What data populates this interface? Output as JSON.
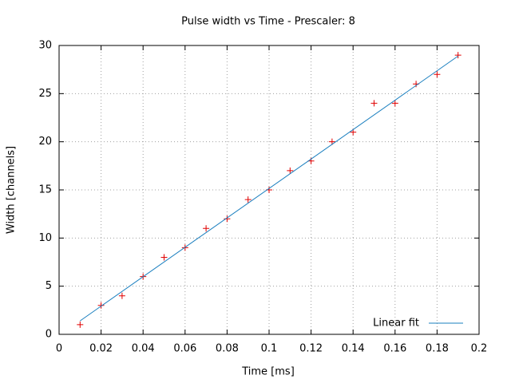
{
  "chart_data": {
    "type": "scatter",
    "title": "Pulse width vs Time - Prescaler: 8",
    "xlabel": "Time [ms]",
    "ylabel": "Width [channels]",
    "series": [
      {
        "type": "scatter",
        "color": "#e00000",
        "x": [
          0.01,
          0.02,
          0.03,
          0.04,
          0.05,
          0.06,
          0.07,
          0.08,
          0.09,
          0.1,
          0.11,
          0.12,
          0.13,
          0.14,
          0.15,
          0.16,
          0.17,
          0.18,
          0.19
        ],
        "values": [
          1,
          3,
          4,
          6,
          8,
          9,
          11,
          12,
          14,
          15,
          17,
          18,
          20,
          21,
          24,
          24,
          26,
          27,
          29
        ]
      },
      {
        "type": "line",
        "name": "Linear fit",
        "color": "#1a7fbf",
        "x": [
          0.01,
          0.19
        ],
        "values": [
          1.4,
          28.9
        ]
      }
    ],
    "xlim": [
      0,
      0.2
    ],
    "xticks": [
      0,
      0.02,
      0.04,
      0.06,
      0.08,
      0.1,
      0.12,
      0.14,
      0.16,
      0.18,
      0.2
    ],
    "ylim": [
      0,
      30
    ],
    "yticks": [
      0,
      5,
      10,
      15,
      20,
      25,
      30
    ],
    "grid": true,
    "legend_position": "bottom right"
  }
}
